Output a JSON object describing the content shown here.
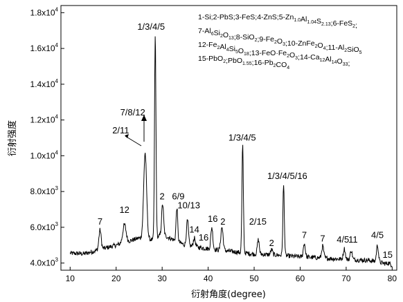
{
  "chart_data": {
    "type": "line",
    "title": "",
    "xlabel": "衍射角度(degree)",
    "ylabel": "衍射强度",
    "xlim": [
      8,
      81
    ],
    "ylim": [
      3600,
      18400
    ],
    "x_ticks": [
      {
        "value": 10,
        "label": "10"
      },
      {
        "value": 20,
        "label": "20"
      },
      {
        "value": 30,
        "label": "30"
      },
      {
        "value": 40,
        "label": "40"
      },
      {
        "value": 50,
        "label": "50"
      },
      {
        "value": 60,
        "label": "60"
      },
      {
        "value": 70,
        "label": "70"
      },
      {
        "value": 80,
        "label": "80"
      }
    ],
    "y_ticks": [
      {
        "value": 4000,
        "mant": "4.0x10",
        "exp": "3"
      },
      {
        "value": 6000,
        "mant": "6.0x10",
        "exp": "3"
      },
      {
        "value": 8000,
        "mant": "8.0x10",
        "exp": "3"
      },
      {
        "value": 10000,
        "mant": "1.0x10",
        "exp": "4"
      },
      {
        "value": 12000,
        "mant": "1.2x10",
        "exp": "4"
      },
      {
        "value": 14000,
        "mant": "1.4x10",
        "exp": "4"
      },
      {
        "value": 16000,
        "mant": "1.6x10",
        "exp": "4"
      },
      {
        "value": 18000,
        "mant": "1.8x10",
        "exp": "4"
      }
    ],
    "baseline": [
      [
        10,
        4550
      ],
      [
        13,
        4520
      ],
      [
        15,
        4650
      ],
      [
        20,
        5000
      ],
      [
        25,
        5400
      ],
      [
        28,
        5300
      ],
      [
        30,
        5600
      ],
      [
        35,
        5000
      ],
      [
        40,
        4800
      ],
      [
        45,
        4650
      ],
      [
        50,
        4500
      ],
      [
        55,
        4450
      ],
      [
        60,
        4350
      ],
      [
        65,
        4280
      ],
      [
        70,
        4200
      ],
      [
        75,
        4150
      ],
      [
        80,
        3900
      ]
    ],
    "peaks": [
      {
        "x": 16.5,
        "y": 5850,
        "w": 0.35
      },
      {
        "x": 21.8,
        "y": 6150,
        "w": 0.5
      },
      {
        "x": 26.3,
        "y": 10150,
        "w": 0.45
      },
      {
        "x": 28.5,
        "y": 16700,
        "w": 0.22
      },
      {
        "x": 30.1,
        "y": 7300,
        "w": 0.3
      },
      {
        "x": 33.2,
        "y": 7100,
        "w": 0.25
      },
      {
        "x": 35.5,
        "y": 6400,
        "w": 0.3
      },
      {
        "x": 37.0,
        "y": 5400,
        "w": 0.3
      },
      {
        "x": 40.8,
        "y": 6000,
        "w": 0.3
      },
      {
        "x": 43.0,
        "y": 6000,
        "w": 0.35
      },
      {
        "x": 47.5,
        "y": 10550,
        "w": 0.22
      },
      {
        "x": 50.9,
        "y": 5300,
        "w": 0.3
      },
      {
        "x": 53.8,
        "y": 4750,
        "w": 0.3
      },
      {
        "x": 56.4,
        "y": 8350,
        "w": 0.22
      },
      {
        "x": 60.9,
        "y": 5100,
        "w": 0.3
      },
      {
        "x": 64.9,
        "y": 4950,
        "w": 0.3
      },
      {
        "x": 69.6,
        "y": 4800,
        "w": 0.3
      },
      {
        "x": 71.1,
        "y": 4700,
        "w": 0.3
      },
      {
        "x": 76.8,
        "y": 5000,
        "w": 0.3
      },
      {
        "x": 79.2,
        "y": 4000,
        "w": 0.3
      }
    ],
    "peak_labels": [
      {
        "text": "7",
        "x": 16.5,
        "y": 6000
      },
      {
        "text": "12",
        "x": 21.8,
        "y": 6650
      },
      {
        "text": "2/11",
        "x": 21.0,
        "y": 11100
      },
      {
        "text": "7/8/12",
        "x": 23.6,
        "y": 12100
      },
      {
        "text": "1/3/4/5",
        "x": 27.6,
        "y": 16900
      },
      {
        "text": "2",
        "x": 30.0,
        "y": 7400
      },
      {
        "text": "6/9",
        "x": 33.5,
        "y": 7400
      },
      {
        "text": "10/13",
        "x": 35.8,
        "y": 6900
      },
      {
        "text": "14",
        "x": 37.0,
        "y": 5550
      },
      {
        "text": "16",
        "x": 39.0,
        "y": 5100
      },
      {
        "text": "16",
        "x": 41.0,
        "y": 6150
      },
      {
        "text": "2",
        "x": 43.2,
        "y": 6000
      },
      {
        "text": "1/3/4/5",
        "x": 47.4,
        "y": 10700
      },
      {
        "text": "2/15",
        "x": 50.8,
        "y": 6000
      },
      {
        "text": "2",
        "x": 53.8,
        "y": 4800
      },
      {
        "text": "1/3/4/5/16",
        "x": 57.2,
        "y": 8550
      },
      {
        "text": "7",
        "x": 60.9,
        "y": 5250
      },
      {
        "text": "7",
        "x": 64.9,
        "y": 5050
      },
      {
        "text": "4/5",
        "x": 69.3,
        "y": 5000
      },
      {
        "text": "11",
        "x": 71.5,
        "y": 5000
      },
      {
        "text": "4/5",
        "x": 76.8,
        "y": 5250
      },
      {
        "text": "15",
        "x": 79.0,
        "y": 4150
      }
    ],
    "legend": [
      [
        {
          "t": "1-Si;2-PbS;3-FeS;4-ZnS;5-Zn"
        },
        {
          "t": "1.0",
          "sub": true
        },
        {
          "t": "Al"
        },
        {
          "t": "1.04",
          "sub": true
        },
        {
          "t": "S"
        },
        {
          "t": "2.13",
          "sub": true
        },
        {
          "t": ";6-FeS"
        },
        {
          "t": "2",
          "sub": true
        },
        {
          "t": ";"
        }
      ],
      [
        {
          "t": "7-Al"
        },
        {
          "t": "6",
          "sub": true
        },
        {
          "t": "Si"
        },
        {
          "t": "2",
          "sub": true
        },
        {
          "t": "O"
        },
        {
          "t": "13",
          "sub": true
        },
        {
          "t": ";8-SiO"
        },
        {
          "t": "2",
          "sub": true
        },
        {
          "t": ";9-Fe"
        },
        {
          "t": "2",
          "sub": true
        },
        {
          "t": "O"
        },
        {
          "t": "3",
          "sub": true
        },
        {
          "t": ";10-ZnFe"
        },
        {
          "t": "2",
          "sub": true
        },
        {
          "t": "O"
        },
        {
          "t": "4",
          "sub": true
        },
        {
          "t": ";11-Al"
        },
        {
          "t": "2",
          "sub": true
        },
        {
          "t": "SiO"
        },
        {
          "t": "5",
          "sub": true
        }
      ],
      [
        {
          "t": "12-Fe"
        },
        {
          "t": "2",
          "sub": true
        },
        {
          "t": "Al"
        },
        {
          "t": "4",
          "sub": true
        },
        {
          "t": "Si"
        },
        {
          "t": "5",
          "sub": true
        },
        {
          "t": "O"
        },
        {
          "t": "18",
          "sub": true
        },
        {
          "t": ";13-FeO·Fe"
        },
        {
          "t": "2",
          "sub": true
        },
        {
          "t": "O"
        },
        {
          "t": "3",
          "sub": true
        },
        {
          "t": ";14-Ca"
        },
        {
          "t": "12",
          "sub": true
        },
        {
          "t": "Al"
        },
        {
          "t": "14",
          "sub": true
        },
        {
          "t": "O"
        },
        {
          "t": "33",
          "sub": true
        },
        {
          "t": ";"
        }
      ],
      [
        {
          "t": "15-PbO"
        },
        {
          "t": "2",
          "sub": true
        },
        {
          "t": ";PbO"
        },
        {
          "t": "1.55",
          "sub": true
        },
        {
          "t": ";16-Pb"
        },
        {
          "t": "2",
          "sub": true
        },
        {
          "t": "CO"
        },
        {
          "t": "4",
          "sub": true
        }
      ]
    ]
  }
}
